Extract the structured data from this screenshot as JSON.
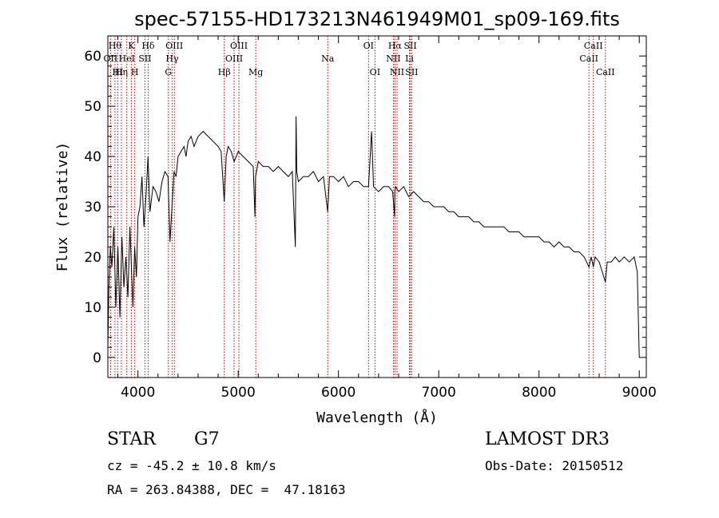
{
  "chart_data": {
    "type": "line",
    "title": "spec-57155-HD173213N461949M01_sp09-169.fits",
    "xlabel": "Wavelength (Å)",
    "ylabel": "Flux (relative)",
    "xlim": [
      3700,
      9070
    ],
    "ylim": [
      -4,
      64
    ],
    "xticks": [
      4000,
      5000,
      6000,
      7000,
      8000,
      9000
    ],
    "yticks": [
      0,
      10,
      20,
      30,
      40,
      50,
      60
    ],
    "xtick_labels": [
      "4000",
      "5000",
      "6000",
      "7000",
      "8000",
      "9000"
    ],
    "ytick_labels": [
      "0",
      "10",
      "20",
      "30",
      "40",
      "50",
      "60"
    ],
    "series": [
      {
        "name": "Flux",
        "x": [
          3700,
          3710,
          3725,
          3740,
          3760,
          3780,
          3800,
          3820,
          3840,
          3860,
          3880,
          3900,
          3920,
          3935,
          3950,
          3968,
          3985,
          4000,
          4020,
          4040,
          4060,
          4080,
          4101,
          4120,
          4150,
          4180,
          4210,
          4240,
          4270,
          4300,
          4320,
          4340,
          4360,
          4380,
          4400,
          4430,
          4460,
          4480,
          4500,
          4530,
          4560,
          4600,
          4650,
          4700,
          4750,
          4800,
          4830,
          4861,
          4880,
          4900,
          4930,
          4960,
          5000,
          5050,
          5100,
          5150,
          5167,
          5173,
          5183,
          5200,
          5250,
          5300,
          5350,
          5400,
          5450,
          5500,
          5540,
          5570,
          5577,
          5584,
          5600,
          5650,
          5700,
          5750,
          5800,
          5850,
          5893,
          5910,
          5950,
          6000,
          6050,
          6100,
          6150,
          6200,
          6250,
          6300,
          6330,
          6350,
          6400,
          6450,
          6500,
          6540,
          6560,
          6563,
          6570,
          6600,
          6650,
          6700,
          6750,
          6800,
          6850,
          6900,
          6950,
          7000,
          7050,
          7100,
          7150,
          7200,
          7250,
          7300,
          7350,
          7400,
          7450,
          7500,
          7550,
          7600,
          7650,
          7700,
          7750,
          7800,
          7850,
          7900,
          7950,
          8000,
          8050,
          8100,
          8150,
          8200,
          8250,
          8300,
          8350,
          8400,
          8450,
          8498,
          8520,
          8542,
          8560,
          8600,
          8662,
          8680,
          8720,
          8760,
          8800,
          8850,
          8900,
          8950,
          8980,
          9000
        ],
        "values": [
          2,
          14,
          22,
          18,
          26,
          10,
          22,
          8,
          24,
          14,
          20,
          12,
          26,
          18,
          10,
          22,
          16,
          28,
          30,
          36,
          26,
          32,
          40,
          29,
          34,
          33,
          31,
          35,
          37,
          36,
          23,
          30,
          37,
          36,
          40,
          41,
          42,
          40,
          43,
          44,
          42,
          44,
          45,
          44,
          43,
          42,
          41,
          31,
          40,
          42,
          41,
          39,
          41,
          40,
          39,
          38,
          28,
          36,
          37,
          39,
          38,
          38,
          37,
          38,
          37,
          36,
          37,
          22,
          48,
          37,
          35,
          36,
          36,
          37,
          35,
          36,
          29,
          36,
          36,
          35,
          36,
          34,
          35,
          35,
          34,
          34,
          45,
          34,
          33,
          34,
          34,
          33,
          28,
          33,
          34,
          33,
          34,
          32,
          33,
          32,
          31,
          31,
          30,
          30,
          30,
          29,
          29,
          28,
          28,
          28,
          27,
          27,
          26,
          26,
          26,
          26,
          26,
          25,
          25,
          25,
          24,
          24,
          24,
          24,
          23,
          23,
          22,
          23,
          22,
          22,
          21,
          21,
          20,
          18,
          20,
          18,
          20,
          19,
          15,
          19,
          19,
          20,
          19,
          20,
          19,
          20,
          17,
          0
        ]
      }
    ],
    "line_markers": [
      {
        "x": 3727,
        "label": "OII",
        "row": 2
      },
      {
        "x": 3771,
        "label": "Hθ",
        "row": 1
      },
      {
        "x": 3798,
        "label": "HI",
        "row": 3
      },
      {
        "x": 3835,
        "label": "Hη",
        "row": 3
      },
      {
        "x": 3889,
        "label": "HeI",
        "row": 2
      },
      {
        "x": 3934,
        "label": "K",
        "row": 1
      },
      {
        "x": 3968,
        "label": "H",
        "row": 3
      },
      {
        "x": 4070,
        "label": "SII",
        "row": 2
      },
      {
        "x": 4102,
        "label": "Hδ",
        "row": 1
      },
      {
        "x": 4304,
        "label": "G",
        "row": 3
      },
      {
        "x": 4341,
        "label": "Hγ",
        "row": 2
      },
      {
        "x": 4363,
        "label": "OIII",
        "row": 1
      },
      {
        "x": 4861,
        "label": "Hβ",
        "row": 3
      },
      {
        "x": 4959,
        "label": "OIII",
        "row": 2
      },
      {
        "x": 5007,
        "label": "OIII",
        "row": 1
      },
      {
        "x": 5175,
        "label": "Mg",
        "row": 3
      },
      {
        "x": 5893,
        "label": "Na",
        "row": 2
      },
      {
        "x": 6300,
        "label": "OI",
        "row": 1
      },
      {
        "x": 6364,
        "label": "OI",
        "row": 3
      },
      {
        "x": 6548,
        "label": "NII",
        "row": 2
      },
      {
        "x": 6563,
        "label": "Hα",
        "row": 1
      },
      {
        "x": 6584,
        "label": "NII",
        "row": 3
      },
      {
        "x": 6708,
        "label": "Li",
        "row": 2
      },
      {
        "x": 6717,
        "label": "SII",
        "row": 1
      },
      {
        "x": 6731,
        "label": "SII",
        "row": 3
      },
      {
        "x": 8498,
        "label": "CaII",
        "row": 2
      },
      {
        "x": 8542,
        "label": "CaII",
        "row": 1
      },
      {
        "x": 8662,
        "label": "CaII",
        "row": 3
      }
    ]
  },
  "info": {
    "class": "STAR",
    "subclass": "G7",
    "survey": "LAMOST DR3",
    "redshift": "cz = -45.2 ± 10.8 km/s",
    "obs_date": "Obs-Date: 20150512",
    "coords": "RA = 263.84388, DEC =  47.18163"
  },
  "colors": {
    "line_marker": "#c00000",
    "spectrum": "#000000",
    "axes": "#000000"
  }
}
